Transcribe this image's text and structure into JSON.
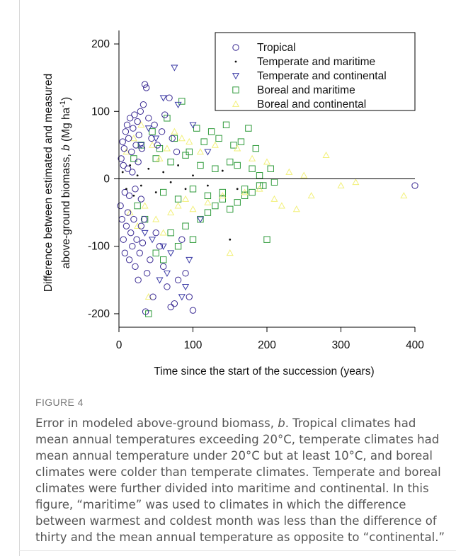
{
  "figure": {
    "label": "FIGURE 4",
    "caption": {
      "pre": "Error in modeled above-ground biomass, ",
      "italic": "b",
      "post": ". Tropical climates had mean annual temperatures exceeding 20°C, temperate climates had mean annual temperature under 20°C but at least 10°C, and boreal climates were colder than temperate climates. Temperate and boreal climates were further divided into maritime and continental. In this figure, “maritime” was used to climates in which the difference between warmest and coldest month was less than the difference of thirty and the mean annual temperature as opposite to “continental.”"
    }
  },
  "chart_data": {
    "type": "scatter",
    "xlabel": "Time since the start of the succession (years)",
    "ylabel_line1": "Difference between estimated and measured",
    "ylabel_line2_pre": "above-ground biomass, ",
    "ylabel_line2_italic": "b",
    "ylabel_line2_post": " (Mg ha",
    "ylabel_line2_sup": "-1",
    "ylabel_line2_end": ")",
    "xlim": [
      0,
      400
    ],
    "ylim": [
      -220,
      220
    ],
    "xticks": [
      0,
      100,
      200,
      300,
      400
    ],
    "yticks": [
      200,
      100,
      0,
      -100,
      -200
    ],
    "reference_line_y": 0,
    "grid": false,
    "legend_position": "top-right",
    "series": [
      {
        "name": "Tropical",
        "marker": "circle",
        "color": "#3a2a93",
        "points": [
          [
            2,
            -40
          ],
          [
            3,
            30
          ],
          [
            4,
            -60
          ],
          [
            5,
            55
          ],
          [
            6,
            -90
          ],
          [
            7,
            45
          ],
          [
            8,
            -110
          ],
          [
            9,
            70
          ],
          [
            10,
            -70
          ],
          [
            11,
            80
          ],
          [
            12,
            -50
          ],
          [
            13,
            60
          ],
          [
            14,
            -120
          ],
          [
            15,
            90
          ],
          [
            16,
            -80
          ],
          [
            17,
            40
          ],
          [
            18,
            -100
          ],
          [
            19,
            75
          ],
          [
            20,
            -60
          ],
          [
            21,
            95
          ],
          [
            22,
            -130
          ],
          [
            23,
            50
          ],
          [
            24,
            -90
          ],
          [
            25,
            85
          ],
          [
            26,
            -150
          ],
          [
            27,
            65
          ],
          [
            28,
            -110
          ],
          [
            29,
            100
          ],
          [
            30,
            -70
          ],
          [
            31,
            45
          ],
          [
            32,
            -95
          ],
          [
            33,
            110
          ],
          [
            34,
            -60
          ],
          [
            35,
            140
          ],
          [
            36,
            -197
          ],
          [
            37,
            135
          ],
          [
            38,
            -140
          ],
          [
            40,
            90
          ],
          [
            42,
            -120
          ],
          [
            44,
            60
          ],
          [
            46,
            -175
          ],
          [
            48,
            80
          ],
          [
            50,
            -80
          ],
          [
            52,
            50
          ],
          [
            55,
            -100
          ],
          [
            58,
            70
          ],
          [
            60,
            -130
          ],
          [
            62,
            95
          ],
          [
            65,
            -160
          ],
          [
            68,
            120
          ],
          [
            70,
            -190
          ],
          [
            72,
            60
          ],
          [
            75,
            -185
          ],
          [
            78,
            40
          ],
          [
            80,
            -150
          ],
          [
            85,
            -90
          ],
          [
            90,
            -140
          ],
          [
            95,
            -175
          ],
          [
            100,
            -195
          ],
          [
            6,
            20
          ],
          [
            8,
            -20
          ],
          [
            12,
            15
          ],
          [
            14,
            -25
          ],
          [
            18,
            10
          ],
          [
            22,
            -15
          ],
          [
            26,
            25
          ],
          [
            30,
            -30
          ],
          [
            400,
            -10
          ]
        ]
      },
      {
        "name": "Temperate and maritime",
        "marker": "dot",
        "color": "#111111",
        "points": [
          [
            5,
            10
          ],
          [
            10,
            -15
          ],
          [
            15,
            20
          ],
          [
            20,
            -25
          ],
          [
            25,
            5
          ],
          [
            30,
            -10
          ],
          [
            40,
            15
          ],
          [
            50,
            -20
          ],
          [
            60,
            10
          ],
          [
            70,
            -5
          ],
          [
            80,
            20
          ],
          [
            90,
            -15
          ],
          [
            100,
            5
          ],
          [
            120,
            -10
          ],
          [
            140,
            12
          ],
          [
            150,
            -90
          ],
          [
            160,
            -15
          ]
        ]
      },
      {
        "name": "Temperate and continental",
        "marker": "triangle-down",
        "color": "#3b3ba6",
        "points": [
          [
            60,
            120
          ],
          [
            75,
            165
          ],
          [
            80,
            110
          ],
          [
            55,
            -150
          ],
          [
            65,
            -140
          ],
          [
            85,
            -175
          ],
          [
            90,
            -160
          ],
          [
            70,
            -110
          ],
          [
            40,
            75
          ],
          [
            50,
            60
          ],
          [
            45,
            -90
          ],
          [
            95,
            -120
          ],
          [
            100,
            80
          ],
          [
            110,
            -60
          ],
          [
            30,
            50
          ],
          [
            35,
            -80
          ],
          [
            120,
            40
          ],
          [
            60,
            -100
          ]
        ]
      },
      {
        "name": "Boreal and maritime",
        "marker": "square",
        "color": "#2e9a3a",
        "points": [
          [
            20,
            30
          ],
          [
            25,
            -40
          ],
          [
            30,
            50
          ],
          [
            35,
            -60
          ],
          [
            40,
            -200
          ],
          [
            45,
            70
          ],
          [
            50,
            -110
          ],
          [
            55,
            45
          ],
          [
            60,
            -120
          ],
          [
            65,
            90
          ],
          [
            70,
            -80
          ],
          [
            75,
            60
          ],
          [
            80,
            -100
          ],
          [
            85,
            115
          ],
          [
            90,
            -70
          ],
          [
            95,
            40
          ],
          [
            100,
            -90
          ],
          [
            105,
            75
          ],
          [
            110,
            -60
          ],
          [
            115,
            55
          ],
          [
            120,
            -50
          ],
          [
            125,
            70
          ],
          [
            130,
            -40
          ],
          [
            135,
            60
          ],
          [
            140,
            -30
          ],
          [
            145,
            80
          ],
          [
            150,
            -45
          ],
          [
            155,
            50
          ],
          [
            160,
            -35
          ],
          [
            165,
            55
          ],
          [
            170,
            -25
          ],
          [
            175,
            75
          ],
          [
            180,
            -20
          ],
          [
            185,
            45
          ],
          [
            190,
            5
          ],
          [
            195,
            -10
          ],
          [
            200,
            -90
          ],
          [
            205,
            15
          ],
          [
            210,
            -5
          ],
          [
            50,
            30
          ],
          [
            60,
            -20
          ],
          [
            70,
            25
          ],
          [
            80,
            -30
          ],
          [
            90,
            35
          ],
          [
            100,
            -15
          ],
          [
            110,
            20
          ],
          [
            120,
            -25
          ],
          [
            130,
            15
          ],
          [
            140,
            -20
          ],
          [
            150,
            25
          ],
          [
            160,
            20
          ],
          [
            170,
            -15
          ],
          [
            180,
            15
          ],
          [
            190,
            -10
          ]
        ]
      },
      {
        "name": "Boreal and continental",
        "marker": "triangle-up",
        "color": "#f2f07a",
        "points": [
          [
            10,
            40
          ],
          [
            15,
            -50
          ],
          [
            20,
            60
          ],
          [
            25,
            -70
          ],
          [
            30,
            80
          ],
          [
            35,
            -40
          ],
          [
            40,
            -175
          ],
          [
            45,
            50
          ],
          [
            50,
            -60
          ],
          [
            55,
            30
          ],
          [
            60,
            -80
          ],
          [
            65,
            45
          ],
          [
            70,
            -50
          ],
          [
            75,
            70
          ],
          [
            80,
            -40
          ],
          [
            85,
            60
          ],
          [
            90,
            -30
          ],
          [
            95,
            55
          ],
          [
            100,
            -45
          ],
          [
            110,
            40
          ],
          [
            120,
            -35
          ],
          [
            130,
            50
          ],
          [
            140,
            -25
          ],
          [
            150,
            -110
          ],
          [
            160,
            45
          ],
          [
            170,
            -20
          ],
          [
            180,
            30
          ],
          [
            190,
            -15
          ],
          [
            200,
            25
          ],
          [
            210,
            -30
          ],
          [
            220,
            -40
          ],
          [
            230,
            10
          ],
          [
            240,
            -45
          ],
          [
            250,
            5
          ],
          [
            260,
            -25
          ],
          [
            280,
            35
          ],
          [
            300,
            -10
          ],
          [
            320,
            -5
          ],
          [
            385,
            -25
          ]
        ]
      }
    ]
  }
}
